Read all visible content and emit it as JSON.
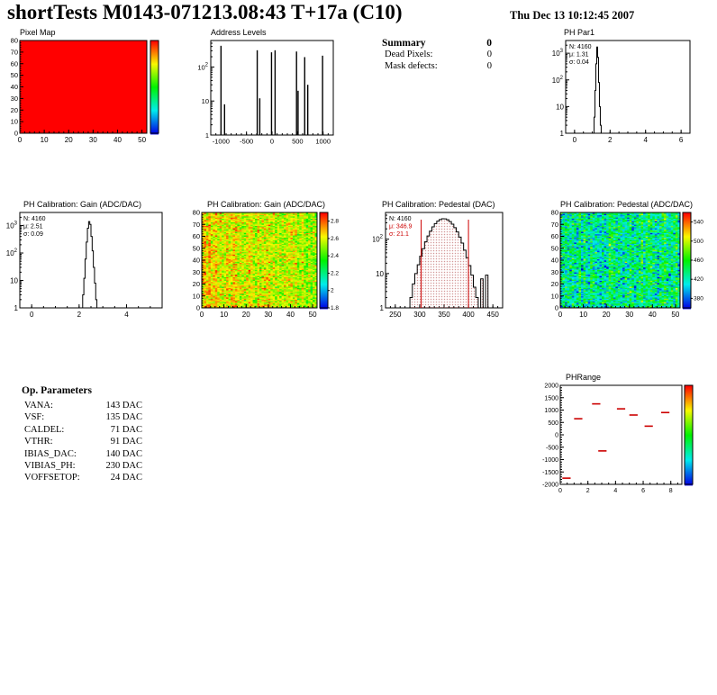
{
  "page": {
    "title": "shortTests M0143-071213.08:43 T+17a (C10)",
    "datetime": "Thu Dec 13 10:12:45 2007"
  },
  "summary": {
    "title": "Summary",
    "value": "0",
    "rows": [
      {
        "label": "Dead Pixels:",
        "value": "0"
      },
      {
        "label": "Mask defects:",
        "value": "0"
      }
    ]
  },
  "op_parameters": {
    "title": "Op. Parameters",
    "rows": [
      {
        "label": "VANA:",
        "value": "143 DAC"
      },
      {
        "label": "VSF:",
        "value": "135 DAC"
      },
      {
        "label": "CALDEL:",
        "value": "71 DAC"
      },
      {
        "label": "VTHR:",
        "value": "91 DAC"
      },
      {
        "label": "IBIAS_DAC:",
        "value": "140 DAC"
      },
      {
        "label": "VIBIAS_PH:",
        "value": "230 DAC"
      },
      {
        "label": "VOFFSETOP:",
        "value": "24 DAC"
      }
    ]
  },
  "chart_data": [
    {
      "id": "pixel_map",
      "type": "heatmap",
      "title": "Pixel Map",
      "x_range": [
        0,
        52
      ],
      "y_range": [
        0,
        80
      ],
      "x_ticks": [
        0,
        10,
        20,
        30,
        40,
        50
      ],
      "y_ticks": [
        0,
        10,
        20,
        30,
        40,
        50,
        60,
        70,
        80
      ],
      "x_minor": 2,
      "cols": 52,
      "rows": 80,
      "uniform_value": 1,
      "value_range": [
        0,
        1
      ],
      "colorbar_ticks": []
    },
    {
      "id": "address_levels",
      "type": "spikes",
      "title": "Address Levels",
      "x_range": [
        -1200,
        1200
      ],
      "x_ticks": [
        -1000,
        -500,
        0,
        500,
        1000
      ],
      "x_minor": 100,
      "log_y": true,
      "y_max": 600,
      "spikes": [
        [
          -1000,
          420
        ],
        [
          -930,
          8
        ],
        [
          -290,
          310
        ],
        [
          -240,
          12
        ],
        [
          -10,
          270
        ],
        [
          60,
          310
        ],
        [
          480,
          285
        ],
        [
          510,
          20
        ],
        [
          640,
          195
        ],
        [
          700,
          30
        ],
        [
          990,
          215
        ]
      ]
    },
    {
      "id": "ph_par1",
      "type": "hist1d",
      "title": "PH Par1",
      "x_range": [
        -0.5,
        6.5
      ],
      "x_ticks": [
        0,
        2,
        4,
        6
      ],
      "x_minor": 0.5,
      "log_y": true,
      "y_max": 3000,
      "stats": [
        {
          "t": "N: 4160",
          "c": "#000000"
        },
        {
          "t": "μ: 1.31",
          "c": "#000000"
        },
        {
          "t": "σ: 0.04",
          "c": "#000000"
        }
      ],
      "bins": {
        "start": 1.05,
        "step": 0.05,
        "counts": [
          1,
          4,
          40,
          400,
          1700,
          700,
          80,
          10,
          2
        ]
      }
    },
    {
      "id": "gain_1d",
      "type": "hist1d",
      "title": "PH Calibration: Gain (ADC/DAC)",
      "x_range": [
        -0.5,
        5.5
      ],
      "x_ticks": [
        0,
        2,
        4
      ],
      "x_minor": 0.5,
      "log_y": true,
      "y_max": 3000,
      "stats": [
        {
          "t": "N: 4160",
          "c": "#000000"
        },
        {
          "t": "μ: 2.51",
          "c": "#000000"
        },
        {
          "t": "σ: 0.09",
          "c": "#000000"
        }
      ],
      "bins": {
        "start": 2.1,
        "step": 0.05,
        "counts": [
          1,
          3,
          12,
          60,
          250,
          800,
          1400,
          1100,
          400,
          120,
          30,
          8,
          2,
          1
        ]
      }
    },
    {
      "id": "gain_2d",
      "type": "heatmap",
      "title": "PH Calibration: Gain (ADC/DAC)",
      "x_range": [
        0,
        52
      ],
      "y_range": [
        0,
        80
      ],
      "x_ticks": [
        0,
        10,
        20,
        30,
        40,
        50
      ],
      "y_ticks": [
        0,
        10,
        20,
        30,
        40,
        50,
        60,
        70,
        80
      ],
      "x_minor": 2,
      "cols": 52,
      "rows": 80,
      "value_range": [
        1.8,
        2.9
      ],
      "noise": {
        "mean": 2.52,
        "col_sd": 0.06,
        "cell_sd": 0.1,
        "seed": 7
      },
      "x_gradient": 0.14,
      "colorbar_ticks": [
        2.8,
        2.6,
        2.4,
        2.2,
        2,
        1.8
      ]
    },
    {
      "id": "pedestal_1d",
      "type": "hist1d",
      "title": "PH Calibration: Pedestal (DAC)",
      "x_range": [
        230,
        470
      ],
      "x_ticks": [
        250,
        300,
        350,
        400,
        450
      ],
      "x_minor": 10,
      "log_y": true,
      "y_max": 600,
      "stats": [
        {
          "t": "N: 4160",
          "c": "#000000"
        },
        {
          "t": "μ: 346.9",
          "c": "#cc0000"
        },
        {
          "t": "σ: 21.1",
          "c": "#cc0000"
        }
      ],
      "bins": {
        "start": 280,
        "step": 5,
        "counts": [
          2,
          5,
          10,
          18,
          32,
          53,
          84,
          124,
          172,
          228,
          284,
          336,
          374,
          393,
          391,
          367,
          326,
          273,
          217,
          163,
          115,
          77,
          48,
          29,
          17,
          9,
          4,
          2,
          1,
          7,
          1,
          9
        ]
      },
      "red_lines": [
        303,
        400
      ],
      "dot_fill": true,
      "accent": "#cc0000"
    },
    {
      "id": "pedestal_2d",
      "type": "heatmap",
      "title": "PH Calibration: Pedestal (ADC/DAC)",
      "x_range": [
        0,
        52
      ],
      "y_range": [
        0,
        80
      ],
      "x_ticks": [
        0,
        10,
        20,
        30,
        40,
        50
      ],
      "y_ticks": [
        0,
        10,
        20,
        30,
        40,
        50,
        60,
        70,
        80
      ],
      "x_minor": 2,
      "cols": 52,
      "rows": 80,
      "value_range": [
        360,
        560
      ],
      "noise": {
        "mean": 432,
        "col_sd": 20,
        "cell_sd": 26,
        "seed": 13
      },
      "colorbar_ticks": [
        540,
        500,
        460,
        420,
        380
      ]
    },
    {
      "id": "ph_range",
      "type": "dash_scatter",
      "title": "PHRange",
      "x_range": [
        0,
        8.8
      ],
      "x_ticks": [
        0,
        2,
        4,
        6,
        8
      ],
      "x_minor": 0.5,
      "y_range": [
        -2000,
        2000
      ],
      "y_tick_step": 500,
      "y_minor": 100,
      "dashes": [
        [
          0.45,
          -1750
        ],
        [
          1.3,
          650
        ],
        [
          2.6,
          1250
        ],
        [
          3.05,
          -650
        ],
        [
          4.4,
          1050
        ],
        [
          5.3,
          800
        ],
        [
          6.4,
          350
        ],
        [
          7.6,
          900
        ]
      ],
      "dash_halfwidth": 0.3,
      "color": "#cc0000"
    }
  ]
}
